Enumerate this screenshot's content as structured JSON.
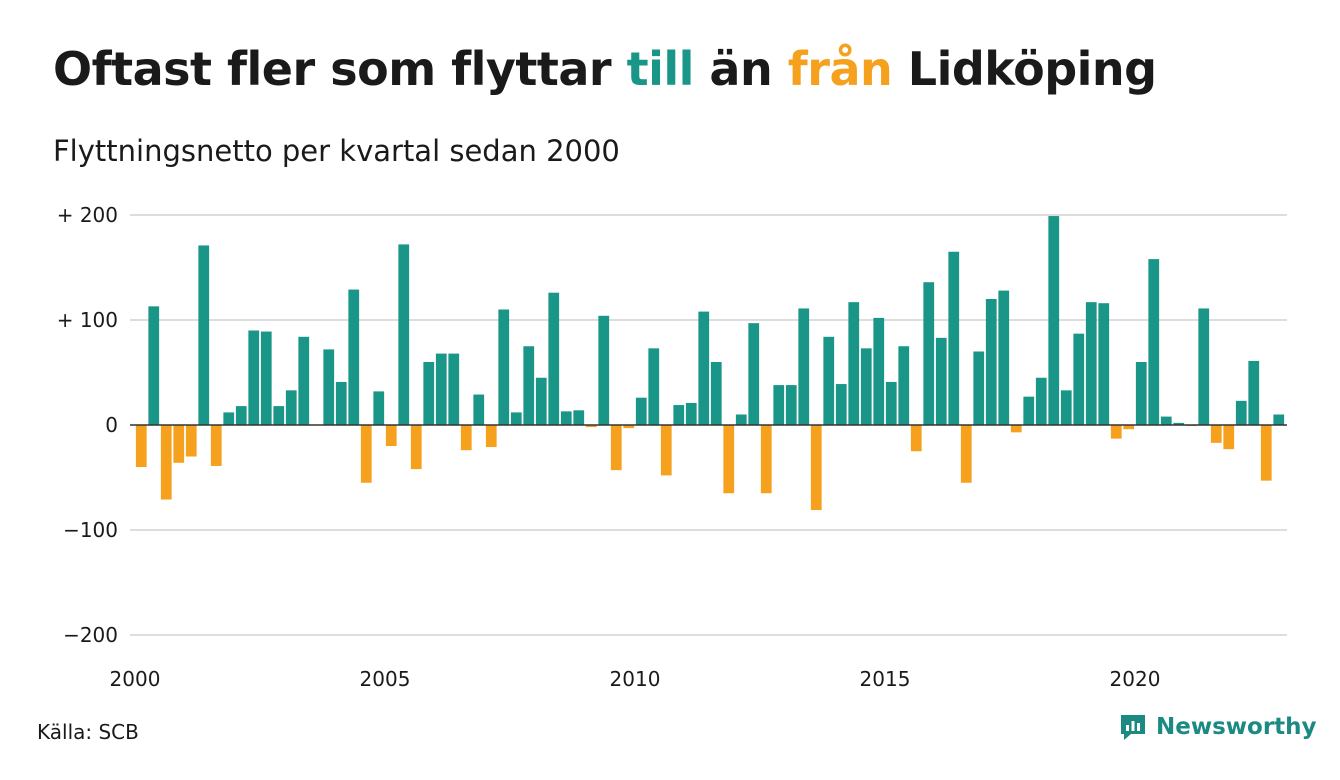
{
  "title": {
    "part1": "Oftast fler som flyttar ",
    "part2": "till",
    "part3": " än ",
    "part4": "från",
    "part5": " Lidköping"
  },
  "subtitle": "Flyttningsnetto per kvartal sedan 2000",
  "source": "Källa: SCB",
  "brand": "Newsworthy",
  "colors": {
    "positive": "#1a9688",
    "negative": "#f5a11e",
    "grid": "#dddddd",
    "text": "#1a1a1a",
    "brand": "#1a8a82"
  },
  "chart_data": {
    "type": "bar",
    "x_start": 2000,
    "x_step": 0.25,
    "values": [
      -40,
      113,
      -71,
      -36,
      -30,
      171,
      -39,
      12,
      18,
      90,
      89,
      18,
      33,
      84,
      0,
      72,
      41,
      129,
      -55,
      32,
      -20,
      172,
      -42,
      60,
      68,
      68,
      -24,
      29,
      -21,
      110,
      12,
      75,
      45,
      126,
      13,
      14,
      -2,
      104,
      -43,
      -3,
      26,
      73,
      -48,
      19,
      21,
      108,
      60,
      -65,
      10,
      97,
      -65,
      38,
      38,
      111,
      -81,
      84,
      39,
      117,
      73,
      102,
      41,
      75,
      -25,
      136,
      83,
      165,
      -55,
      70,
      120,
      128,
      -7,
      27,
      45,
      199,
      33,
      87,
      117,
      116,
      -13,
      -4,
      60,
      158,
      8,
      2,
      -1,
      111,
      -17,
      -23,
      23,
      61,
      -53,
      10
    ],
    "ylim": [
      -200,
      200
    ],
    "yticks": [
      200,
      100,
      0,
      -100,
      -200
    ],
    "ytick_labels": [
      "+ 200",
      "+ 100",
      "0",
      "−100",
      "−200"
    ],
    "xlim": [
      2000,
      2023
    ],
    "xticks": [
      2000,
      2005,
      2010,
      2015,
      2020
    ],
    "xtick_labels": [
      "2000",
      "2005",
      "2010",
      "2015",
      "2020"
    ],
    "grid": true,
    "legend": "none"
  }
}
